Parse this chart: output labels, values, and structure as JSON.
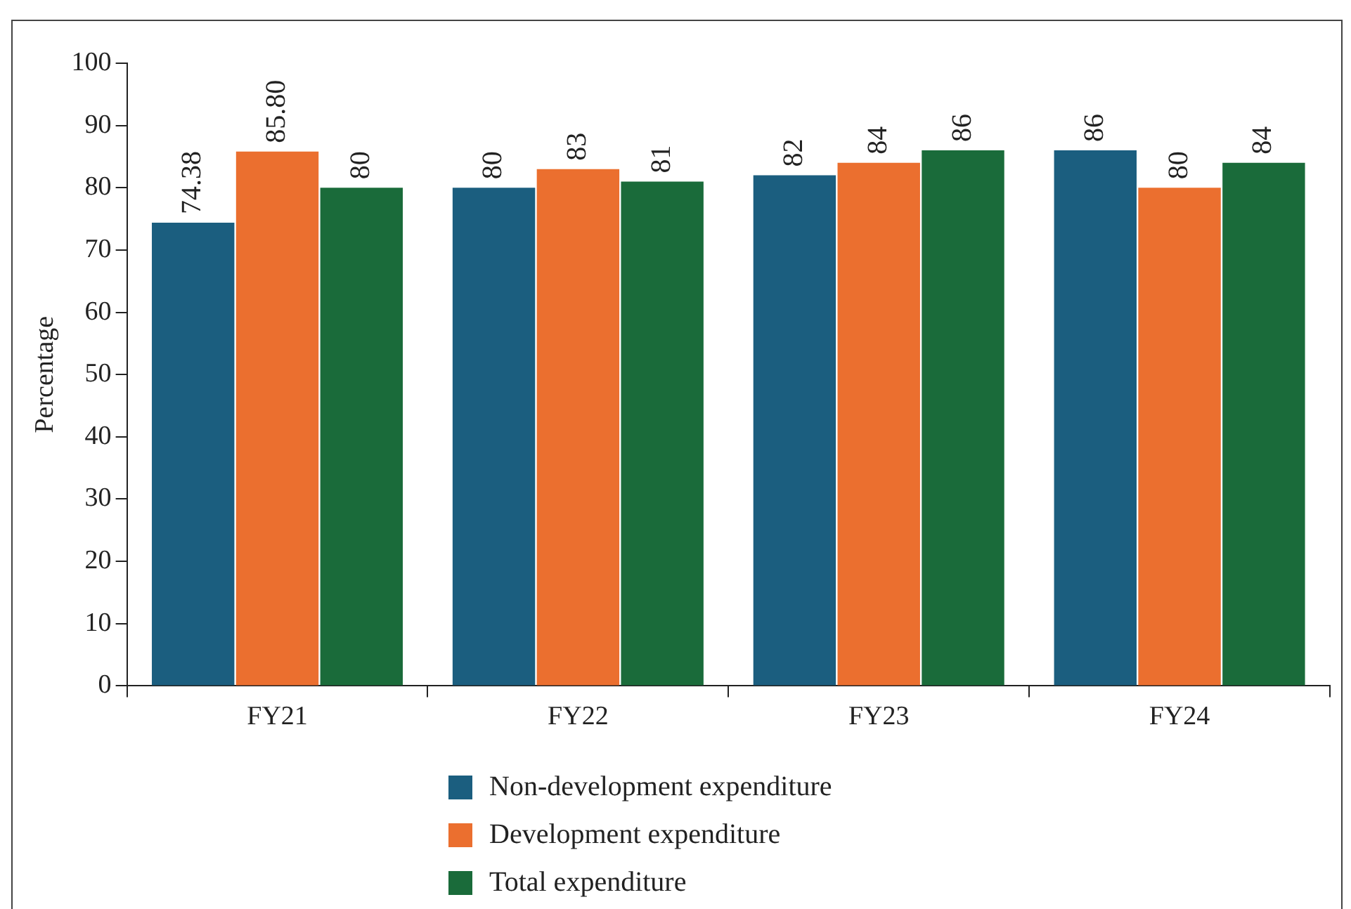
{
  "chart_data": {
    "type": "bar",
    "ylabel": "Percentage",
    "categories": [
      "FY21",
      "FY22",
      "FY23",
      "FY24"
    ],
    "series": [
      {
        "name": "Non-development expenditure",
        "color": "#1b5e7f",
        "values": [
          74.38,
          80,
          82,
          86
        ],
        "value_labels": [
          "74.38",
          "80",
          "82",
          "86"
        ]
      },
      {
        "name": "Development expenditure",
        "color": "#eb6f2f",
        "values": [
          85.8,
          83,
          84,
          80
        ],
        "value_labels": [
          "85.80",
          "83",
          "84",
          "80"
        ]
      },
      {
        "name": "Total expenditure",
        "color": "#1a6b3a",
        "values": [
          80,
          81,
          86,
          84
        ],
        "value_labels": [
          "80",
          "81",
          "86",
          "84"
        ]
      }
    ],
    "ylim": [
      0,
      100
    ],
    "yticks": [
      0,
      10,
      20,
      30,
      40,
      50,
      60,
      70,
      80,
      90,
      100
    ],
    "grid": false,
    "legend": "bottom"
  }
}
